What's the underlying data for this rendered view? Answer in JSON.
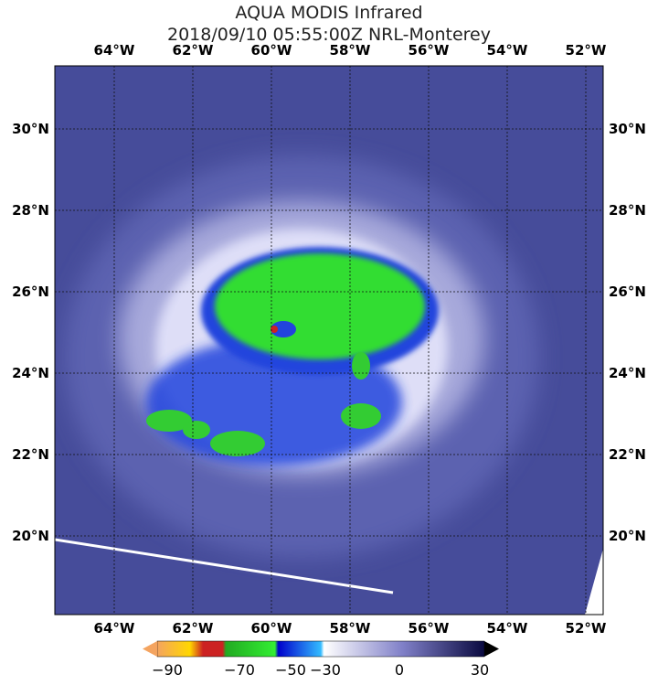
{
  "title": {
    "line1": "AQUA MODIS Infrared",
    "line2": "2018/09/10 05:55:00Z NRL-Monterey"
  },
  "longitudes": [
    "64°W",
    "62°W",
    "60°W",
    "58°W",
    "56°W",
    "54°W",
    "52°W"
  ],
  "latitudes": [
    "30°N",
    "28°N",
    "26°N",
    "24°N",
    "22°N",
    "20°N"
  ],
  "colorbar": {
    "labels": [
      "−90",
      "−70",
      "−50",
      "−30",
      "0",
      "30"
    ]
  }
}
